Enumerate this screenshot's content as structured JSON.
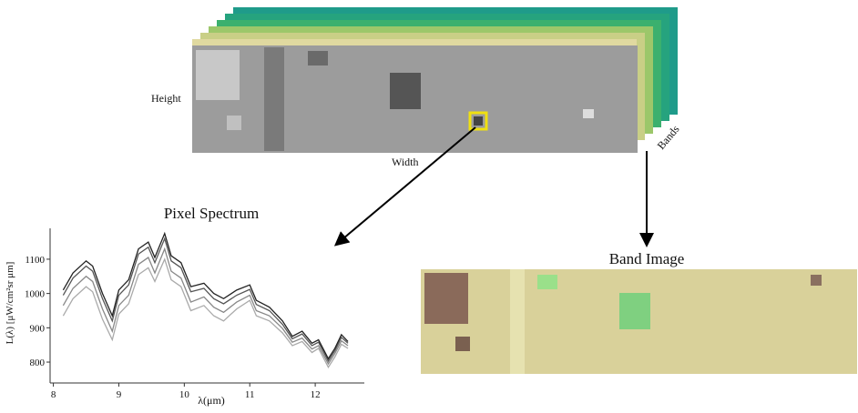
{
  "diagram": {
    "height_label": "Height",
    "width_label": "Width",
    "bands_label": "Bands",
    "spectrum_title": "Pixel Spectrum",
    "band_image_title": "Band Image"
  },
  "chart_data": {
    "type": "line",
    "x_label": "λ(μm)",
    "y_label": "L(λ) [μW/cm²sr μm]",
    "x": [
      8.15,
      8.3,
      8.5,
      8.6,
      8.75,
      8.9,
      9.0,
      9.15,
      9.3,
      9.45,
      9.55,
      9.7,
      9.8,
      9.95,
      10.1,
      10.3,
      10.45,
      10.6,
      10.8,
      11.0,
      11.1,
      11.3,
      11.5,
      11.65,
      11.8,
      11.95,
      12.05,
      12.2,
      12.3,
      12.4,
      12.5
    ],
    "series": [
      {
        "color": "#222222",
        "values": [
          1010,
          1060,
          1095,
          1080,
          1000,
          935,
          1010,
          1040,
          1130,
          1150,
          1105,
          1175,
          1110,
          1090,
          1020,
          1030,
          1000,
          985,
          1010,
          1025,
          980,
          960,
          920,
          875,
          890,
          855,
          865,
          810,
          840,
          880,
          860
        ]
      },
      {
        "color": "#555555",
        "values": [
          995,
          1045,
          1080,
          1065,
          985,
          920,
          995,
          1025,
          1115,
          1135,
          1090,
          1160,
          1095,
          1075,
          1005,
          1015,
          985,
          970,
          995,
          1012,
          968,
          950,
          910,
          868,
          882,
          848,
          858,
          803,
          833,
          872,
          855
        ]
      },
      {
        "color": "#888888",
        "values": [
          965,
          1015,
          1050,
          1035,
          955,
          890,
          965,
          995,
          1085,
          1105,
          1060,
          1130,
          1065,
          1045,
          975,
          990,
          960,
          945,
          975,
          995,
          950,
          935,
          898,
          858,
          870,
          838,
          848,
          795,
          825,
          862,
          848
        ]
      },
      {
        "color": "#aaaaaa",
        "values": [
          935,
          985,
          1020,
          1005,
          925,
          865,
          940,
          970,
          1055,
          1075,
          1035,
          1100,
          1040,
          1020,
          950,
          965,
          935,
          920,
          955,
          980,
          935,
          920,
          885,
          848,
          860,
          828,
          840,
          785,
          815,
          852,
          840
        ]
      }
    ],
    "xlim": [
      7.95,
      12.75
    ],
    "xticks": [
      8,
      9,
      10,
      11,
      12
    ],
    "ylim": [
      755,
      1190
    ],
    "yticks": [
      800,
      900,
      1000,
      1100
    ]
  }
}
